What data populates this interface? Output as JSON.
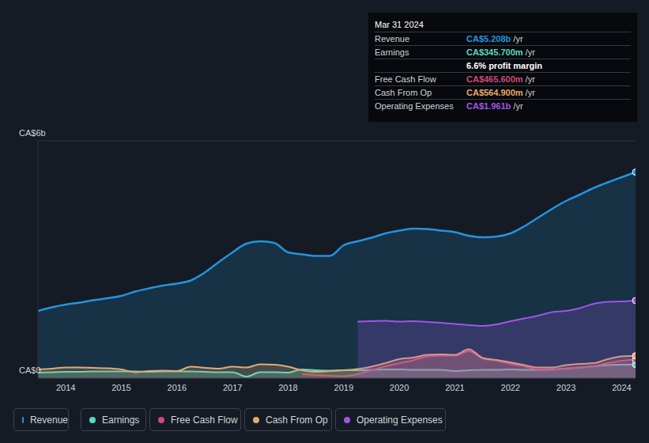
{
  "chart_data": {
    "type": "area",
    "x": [
      2013.5,
      2013.75,
      2014,
      2014.25,
      2014.5,
      2014.75,
      2015,
      2015.25,
      2015.5,
      2015.75,
      2016,
      2016.25,
      2016.5,
      2016.75,
      2017,
      2017.25,
      2017.5,
      2017.75,
      2018,
      2018.25,
      2018.5,
      2018.75,
      2019,
      2019.25,
      2019.5,
      2019.75,
      2020,
      2020.25,
      2020.5,
      2020.75,
      2021,
      2021.25,
      2021.5,
      2021.75,
      2022,
      2022.25,
      2022.5,
      2022.75,
      2023,
      2023.25,
      2023.5,
      2023.75,
      2024,
      2024.25
    ],
    "xlim": [
      2013.5,
      2024.25
    ],
    "xticks": [
      2014,
      2015,
      2016,
      2017,
      2018,
      2019,
      2020,
      2021,
      2022,
      2023,
      2024
    ],
    "ylim": [
      0,
      6
    ],
    "yticks": [
      {
        "value": 0,
        "label": "CA$0"
      },
      {
        "value": 6,
        "label": "CA$6b"
      }
    ],
    "grid": true,
    "series": [
      {
        "name": "Revenue",
        "color": "#2394df",
        "values": [
          1.7,
          1.79,
          1.86,
          1.91,
          1.97,
          2.02,
          2.08,
          2.19,
          2.27,
          2.34,
          2.39,
          2.47,
          2.67,
          2.93,
          3.18,
          3.4,
          3.46,
          3.42,
          3.18,
          3.13,
          3.09,
          3.09,
          3.36,
          3.46,
          3.55,
          3.66,
          3.73,
          3.78,
          3.77,
          3.73,
          3.69,
          3.6,
          3.56,
          3.58,
          3.66,
          3.84,
          4.06,
          4.28,
          4.48,
          4.64,
          4.81,
          4.95,
          5.08,
          5.208
        ]
      },
      {
        "name": "Earnings",
        "color": "#58d9c1",
        "values": [
          0.14,
          0.15,
          0.16,
          0.16,
          0.17,
          0.17,
          0.17,
          0.17,
          0.16,
          0.17,
          0.17,
          0.17,
          0.16,
          0.15,
          0.15,
          0.04,
          0.15,
          0.15,
          0.14,
          0.22,
          0.2,
          0.19,
          0.2,
          0.2,
          0.21,
          0.22,
          0.22,
          0.21,
          0.21,
          0.21,
          0.18,
          0.2,
          0.21,
          0.21,
          0.22,
          0.21,
          0.21,
          0.22,
          0.24,
          0.27,
          0.3,
          0.33,
          0.34,
          0.3457
        ]
      },
      {
        "name": "Free Cash Flow",
        "color": "#d1487a",
        "values": [
          null,
          null,
          null,
          null,
          null,
          null,
          null,
          null,
          null,
          null,
          null,
          null,
          null,
          null,
          null,
          null,
          null,
          null,
          null,
          0.1,
          0.08,
          0.06,
          0.05,
          0.1,
          0.2,
          0.3,
          0.38,
          0.45,
          0.55,
          0.57,
          0.57,
          0.68,
          0.5,
          0.44,
          0.36,
          0.3,
          0.22,
          0.21,
          0.25,
          0.27,
          0.3,
          0.38,
          0.44,
          0.4656
        ]
      },
      {
        "name": "Cash From Op",
        "color": "#e8a86a",
        "values": [
          0.22,
          0.24,
          0.27,
          0.27,
          0.26,
          0.25,
          0.22,
          0.15,
          0.18,
          0.19,
          0.18,
          0.29,
          0.26,
          0.24,
          0.29,
          0.27,
          0.35,
          0.34,
          0.29,
          0.2,
          0.16,
          0.18,
          0.2,
          0.23,
          0.29,
          0.38,
          0.48,
          0.52,
          0.59,
          0.6,
          0.59,
          0.73,
          0.51,
          0.46,
          0.4,
          0.33,
          0.27,
          0.27,
          0.33,
          0.36,
          0.38,
          0.48,
          0.55,
          0.5649
        ]
      },
      {
        "name": "Operating Expenses",
        "color": "#a155e8",
        "values": [
          null,
          null,
          null,
          null,
          null,
          null,
          null,
          null,
          null,
          null,
          null,
          null,
          null,
          null,
          null,
          null,
          null,
          null,
          null,
          null,
          null,
          null,
          null,
          1.43,
          1.44,
          1.45,
          1.43,
          1.44,
          1.42,
          1.4,
          1.37,
          1.34,
          1.32,
          1.36,
          1.44,
          1.51,
          1.58,
          1.67,
          1.7,
          1.77,
          1.88,
          1.93,
          1.94,
          1.961
        ]
      }
    ],
    "info_box": {
      "title": "Mar 31 2024",
      "unit": "/yr",
      "values": [
        "CA$5.208b",
        "CA$345.700m",
        "CA$465.600m",
        "CA$564.900m",
        "CA$1.961b"
      ],
      "note": "6.6% profit margin"
    }
  }
}
